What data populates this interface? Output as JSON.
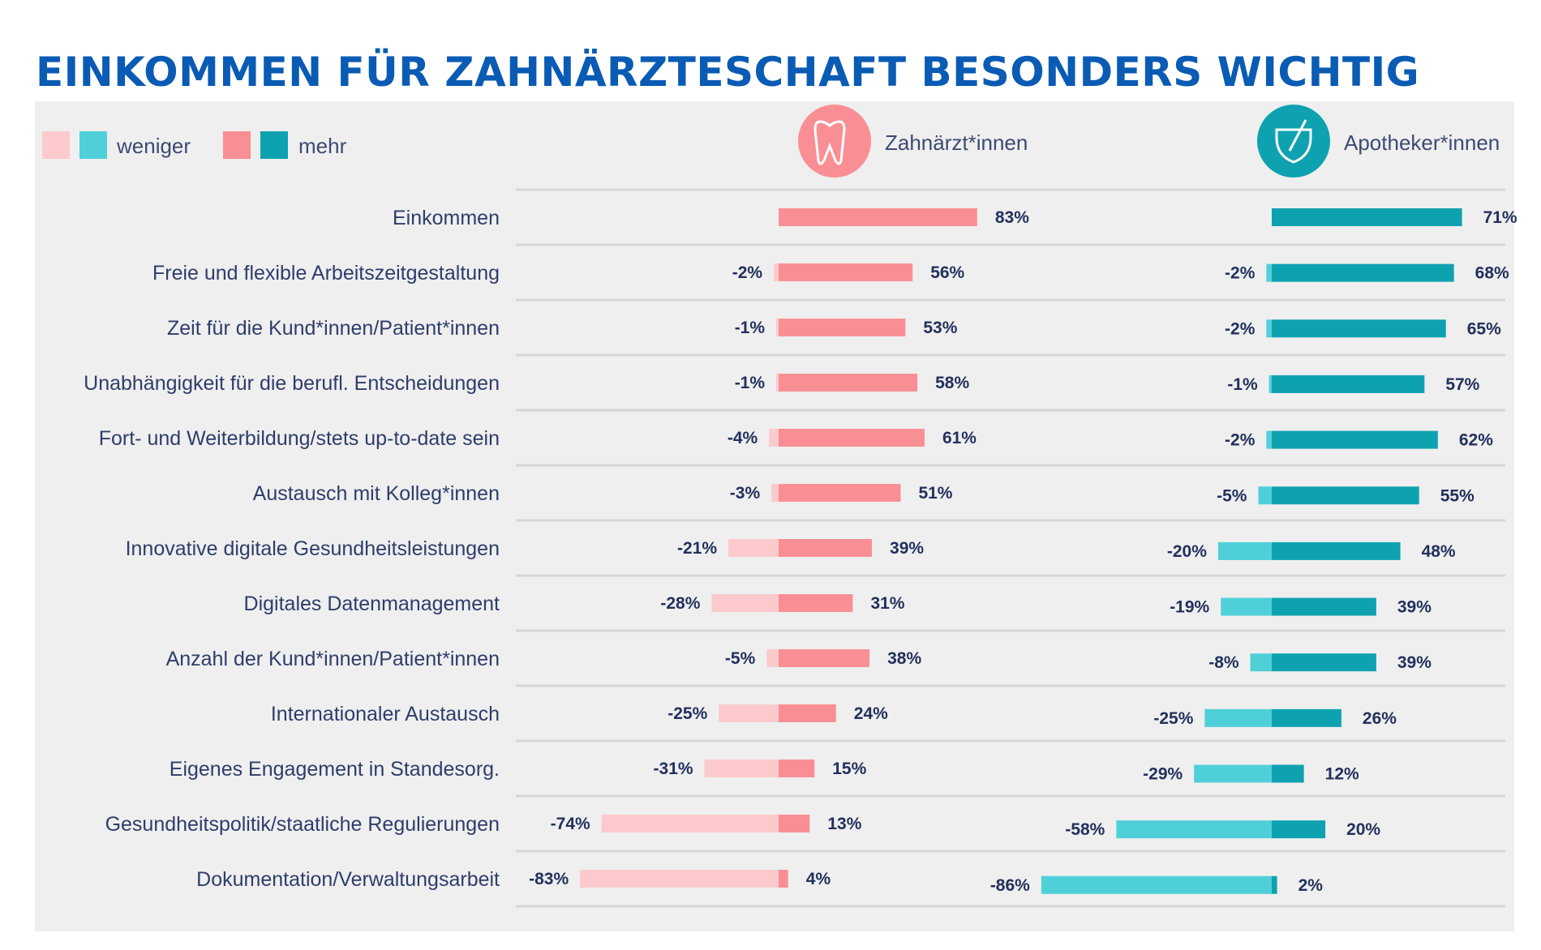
{
  "title": "EINKOMMEN FÜR ZAHNÄRZTESCHAFT BESONDERS WICHTIG",
  "legend": {
    "less_label": "weniger",
    "more_label": "mehr"
  },
  "colors": {
    "title": "#0a5bb4",
    "dent_less": "#fccacd",
    "dent_more": "#f98f94",
    "pharm_less": "#4fd0d8",
    "pharm_more": "#0ea2b0",
    "text": "#2e3d6b",
    "panel": "#efefef"
  },
  "chart_data": {
    "type": "bar",
    "title": "EINKOMMEN FÜR ZAHNÄRZTESCHAFT BESONDERS WICHTIG",
    "orientation": "horizontal-diverging",
    "legend": [
      "weniger",
      "mehr"
    ],
    "groups": [
      {
        "name": "Zahnärzt*innen",
        "icon": "tooth-icon"
      },
      {
        "name": "Apotheker*innen",
        "icon": "mortar-pestle-icon"
      }
    ],
    "categories": [
      "Einkommen",
      "Freie und flexible Arbeitszeitgestaltung",
      "Zeit für die Kund*innen/Patient*innen",
      "Unabhängigkeit für die berufl. Entscheidungen",
      "Fort- und Weiterbildung/stets up-to-date sein",
      "Austausch mit Kolleg*innen",
      "Innovative digitale Gesundheitsleistungen",
      "Digitales Datenmanagement",
      "Anzahl der Kund*innen/Patient*innen",
      "Internationaler Austausch",
      "Eigenes Engagement in Standesorg.",
      "Gesundheitspolitik/staatliche Regulierungen",
      "Dokumentation/Verwaltungsarbeit"
    ],
    "series": [
      {
        "name": "Zahnärzt*innen weniger",
        "values": [
          null,
          -2,
          -1,
          -1,
          -4,
          -3,
          -21,
          -28,
          -5,
          -25,
          -31,
          -74,
          -83
        ]
      },
      {
        "name": "Zahnärzt*innen mehr",
        "values": [
          83,
          56,
          53,
          58,
          61,
          51,
          39,
          31,
          38,
          24,
          15,
          13,
          4
        ]
      },
      {
        "name": "Apotheker*innen weniger",
        "values": [
          null,
          -2,
          -2,
          -1,
          -2,
          -5,
          -20,
          -19,
          -8,
          -25,
          -29,
          -58,
          -86
        ]
      },
      {
        "name": "Apotheker*innen mehr",
        "values": [
          71,
          68,
          65,
          57,
          62,
          55,
          48,
          39,
          39,
          26,
          12,
          20,
          2
        ]
      }
    ],
    "unit": "%",
    "xlabel": "",
    "ylabel": "",
    "grid": false
  }
}
